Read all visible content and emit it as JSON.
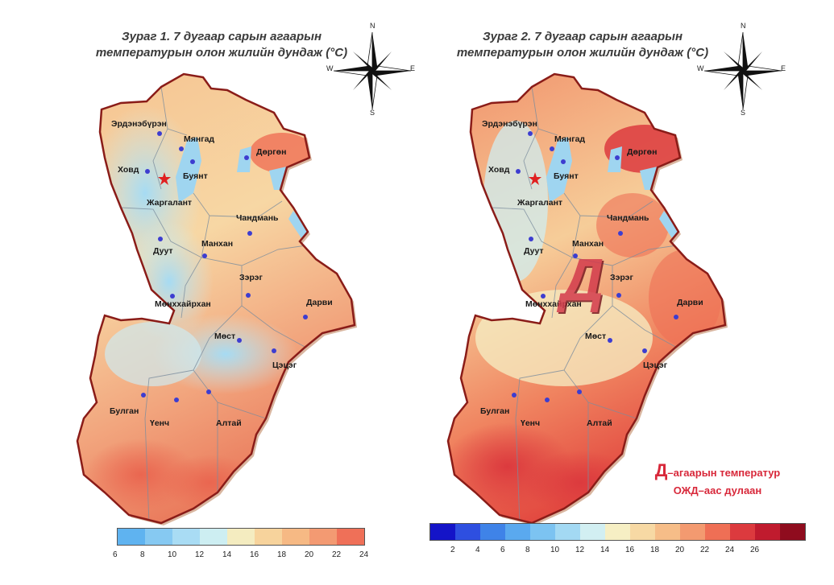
{
  "maps": [
    {
      "title_line1": "Зураг 1. 7 дугаар сарын агаарын",
      "title_line2": "температурын олон жилийн дундаж (°C)",
      "legend": {
        "ticks": [
          "6",
          "8",
          "10",
          "12",
          "14",
          "16",
          "18",
          "20",
          "22",
          "24"
        ],
        "colors": [
          "#5fb3f0",
          "#86c9f2",
          "#a9dcf4",
          "#cdeef2",
          "#f4ecc0",
          "#f7d39c",
          "#f6b984",
          "#f39a72",
          "#ef7058"
        ]
      },
      "places": {
        "erdenebüren": "Эрдэнэбүрэн",
        "myangad": "Мянгад",
        "dörgön": "Дөргөн",
        "khovd": "Ховд",
        "buyant": "Буянт",
        "jargalant": "Жаргалант",
        "chandmani": "Чандмань",
        "manhan": "Манхан",
        "duut": "Дуут",
        "zereg": "Зэрэг",
        "darvi": "Дарви",
        "mönkhkhairkhan": "Мөнххайрхан",
        "most": "Мөст",
        "tsetseg": "Цэцэг",
        "bulgan": "Булган",
        "üench": "Үенч",
        "altai": "Алтай"
      }
    },
    {
      "title_line1": "Зураг 2. 7 дугаар сарын агаарын",
      "title_line2": "температурын олон жилийн дундаж (°C)",
      "legend": {
        "ticks": [
          "2",
          "4",
          "6",
          "8",
          "10",
          "12",
          "14",
          "16",
          "18",
          "20",
          "22",
          "24",
          "26"
        ],
        "colors": [
          "#1414c8",
          "#2e4fe0",
          "#3f83e8",
          "#5aa9ef",
          "#7cc3f1",
          "#a3d9f3",
          "#d2eff2",
          "#f6efc4",
          "#f7d9a4",
          "#f6bd88",
          "#f39a70",
          "#ef6f55",
          "#dc3a3e",
          "#c01b2e",
          "#8f0c1e"
        ]
      },
      "places": {
        "erdenebüren": "Эрдэнэбүрэн",
        "myangad": "Мянгад",
        "dörgön": "Дөргөн",
        "khovd": "Ховд",
        "buyant": "Буянт",
        "jargalant": "Жаргалант",
        "chandmani": "Чандмань",
        "manhan": "Манхан",
        "duut": "Дуут",
        "zereg": "Зэрэг",
        "darvi": "Дарви",
        "mönkhkhairkhan": "Мөнххайрхан",
        "most": "Мөст",
        "tsetseg": "Цэцэг",
        "bulgan": "Булган",
        "üench": "Үенч",
        "altai": "Алтай"
      },
      "big_letter": "Д",
      "note_letter": "Д",
      "note_line1": "–агаарын температур",
      "note_line2": "ОЖД–аас дулаан"
    }
  ],
  "compass": {
    "n": "N",
    "s": "S",
    "e": "E",
    "w": "W"
  },
  "colors": {
    "water": "#9fd5f0",
    "border": "#8a1c18",
    "dot": "#3d3dd0",
    "note": "#d8283a"
  }
}
